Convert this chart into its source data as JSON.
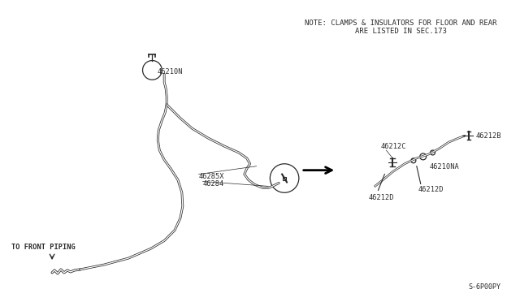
{
  "bg_color": "#ffffff",
  "line_color": "#2a2a2a",
  "text_color": "#2a2a2a",
  "note_line1": "NOTE: CLAMPS & INSULATORS FOR FLOOR AND REAR",
  "note_line2": "ARE LISTED IN SEC.173",
  "footer_text": "S-6P00PY",
  "label_46210N": "46210N",
  "label_46285X": "46285X",
  "label_46284": "46284",
  "label_to_front": "TO FRONT PIPING",
  "label_46212C": "46212C",
  "label_46212B": "46212B",
  "label_46210NA": "46210NA",
  "label_46212D_left": "46212D",
  "label_46212D_right": "46212D",
  "font_size_note": 6.5,
  "font_size_label": 6.2,
  "font_size_footer": 6.0
}
